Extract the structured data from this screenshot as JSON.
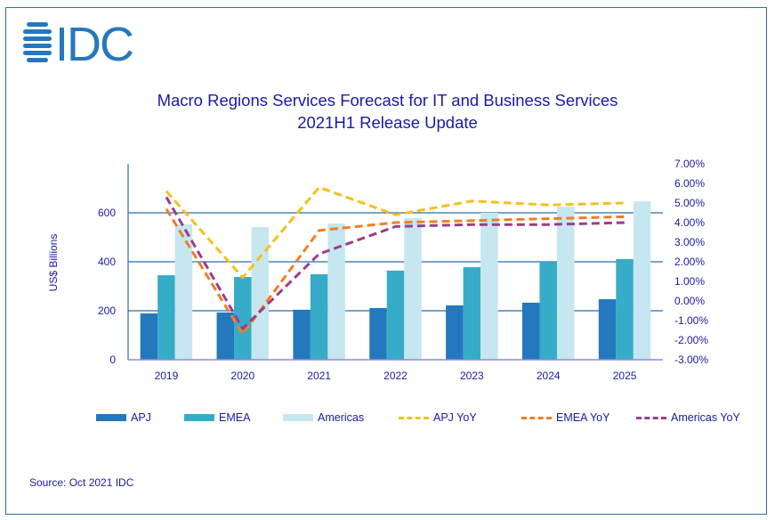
{
  "brand": {
    "logo_text": "IDC",
    "logo_color": "#2478be"
  },
  "source_text": "Source: Oct 2021 IDC",
  "chart_data": {
    "type": "bar",
    "combo": "bar+line (dual axis)",
    "title": "Macro Regions Services Forecast for IT and Business Services",
    "subtitle": "2021H1 Release Update",
    "xlabel": "",
    "ylabel": "US$ Billions",
    "y2label": "",
    "categories": [
      "2019",
      "2020",
      "2021",
      "2022",
      "2023",
      "2024",
      "2025"
    ],
    "ylim": [
      0,
      800
    ],
    "yticks": [
      0,
      200,
      400,
      600
    ],
    "y2lim": [
      -3,
      7
    ],
    "y2ticks": [
      "-3.00%",
      "-2.00%",
      "-1.00%",
      "0.00%",
      "1.00%",
      "2.00%",
      "3.00%",
      "4.00%",
      "5.00%",
      "6.00%",
      "7.00%"
    ],
    "grid": true,
    "legend_position": "bottom",
    "series": [
      {
        "name": "APJ",
        "kind": "bar",
        "axis": "left",
        "color": "#2478be",
        "values": [
          189,
          193,
          204,
          211,
          222,
          233,
          247
        ]
      },
      {
        "name": "EMEA",
        "kind": "bar",
        "axis": "left",
        "color": "#36acc8",
        "values": [
          345,
          338,
          349,
          364,
          378,
          400,
          411
        ]
      },
      {
        "name": "Americas",
        "kind": "bar",
        "axis": "left",
        "color": "#c6e7ef",
        "values": [
          553,
          542,
          556,
          578,
          600,
          625,
          647
        ]
      },
      {
        "name": "APJ YoY",
        "kind": "line",
        "axis": "right",
        "color": "#f5c01c",
        "values": [
          5.6,
          1.2,
          5.8,
          4.4,
          5.1,
          4.9,
          5.0
        ]
      },
      {
        "name": "EMEA YoY",
        "kind": "line",
        "axis": "right",
        "color": "#f07e26",
        "values": [
          4.7,
          -1.7,
          3.6,
          4.0,
          4.1,
          4.2,
          4.3
        ]
      },
      {
        "name": "Americas YoY",
        "kind": "line",
        "axis": "right",
        "color": "#9b3d8f",
        "values": [
          5.3,
          -1.4,
          2.4,
          3.8,
          3.9,
          3.9,
          4.0
        ]
      }
    ]
  }
}
